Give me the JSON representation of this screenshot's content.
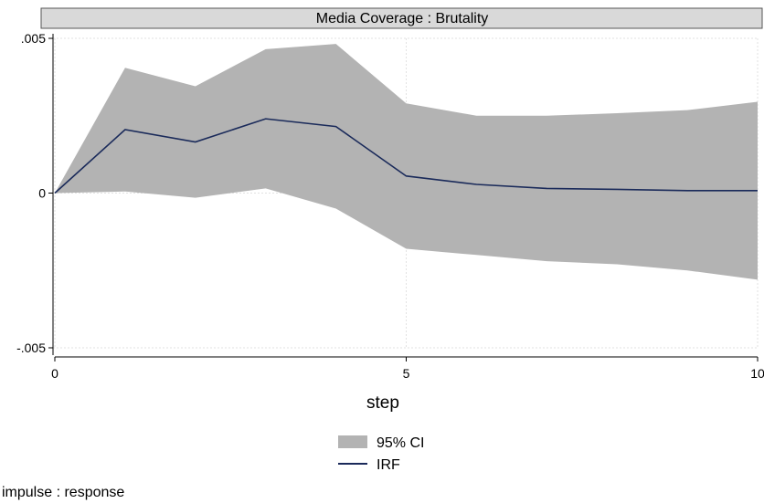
{
  "chart_data": {
    "type": "area",
    "panel_title": "Media Coverage : Brutality",
    "xlabel": "step",
    "ylabel": "",
    "xlim": [
      0,
      10
    ],
    "ylim": [
      -0.005,
      0.005
    ],
    "x_ticks": [
      0,
      5,
      10
    ],
    "x_tick_labels": [
      "0",
      "5",
      "10"
    ],
    "y_ticks": [
      0.005,
      0,
      -0.005
    ],
    "y_tick_labels": [
      ".005",
      "0",
      "-.005"
    ],
    "grid": true,
    "x": [
      0,
      1,
      2,
      3,
      4,
      5,
      6,
      7,
      8,
      9,
      10
    ],
    "series": [
      {
        "name": "95% CI",
        "kind": "band",
        "color": "#b3b3b3",
        "upper": [
          0.0,
          0.00405,
          0.00345,
          0.00465,
          0.00482,
          0.0029,
          0.0025,
          0.0025,
          0.00258,
          0.00268,
          0.00295
        ],
        "lower": [
          0.0,
          5e-05,
          -0.00015,
          0.00015,
          -0.0005,
          -0.0018,
          -0.002,
          -0.0022,
          -0.0023,
          -0.0025,
          -0.0028
        ]
      },
      {
        "name": "IRF",
        "kind": "line",
        "color": "#1a2a5a",
        "values": [
          0.0,
          0.00205,
          0.00165,
          0.0024,
          0.00215,
          0.00055,
          0.00028,
          0.00015,
          0.00012,
          8e-05,
          8e-05
        ]
      }
    ],
    "legend_position": "bottom-center"
  },
  "note": "impulse : response",
  "colors": {
    "panel_header_bg": "#d9d9d9",
    "band": "#b3b3b3",
    "irf": "#1a2a5a",
    "grid": "#e6e6e6"
  }
}
